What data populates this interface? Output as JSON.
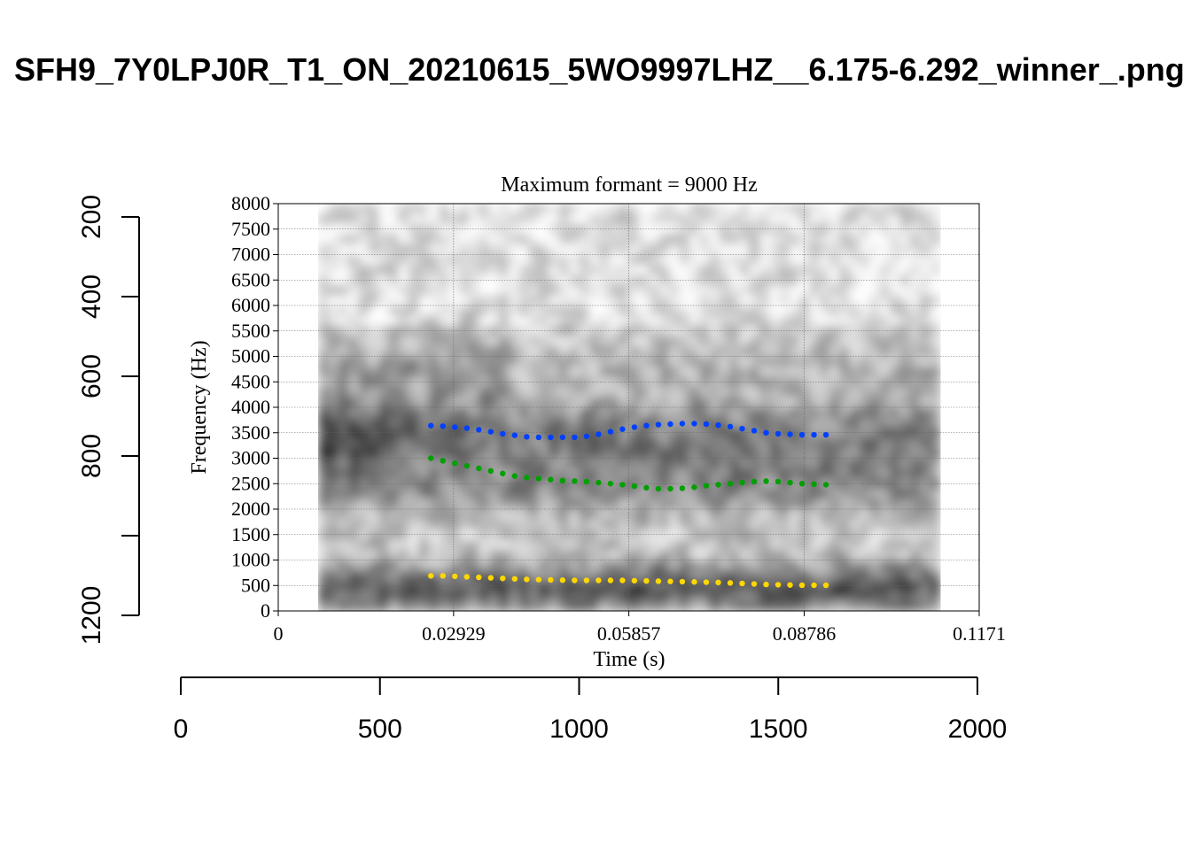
{
  "title": "SFH9_7Y0LPJ0R_T1_ON_20210615_5WO9997LHZ__6.175-6.292_winner_.png",
  "chart_data": {
    "type": "scatter",
    "subtitle": "Maximum formant = 9000 Hz",
    "xlabel": "Time (s)",
    "ylabel": "Frequency (Hz)",
    "xlim": [
      0,
      0.1171
    ],
    "ylim": [
      0,
      8000
    ],
    "x_ticks": [
      "0",
      "0.02929",
      "0.05857",
      "0.08786",
      "0.1171"
    ],
    "y_ticks": [
      "0",
      "500",
      "1000",
      "1500",
      "2000",
      "2500",
      "3000",
      "3500",
      "4000",
      "4500",
      "5000",
      "5500",
      "6000",
      "6500",
      "7000",
      "7500",
      "8000"
    ],
    "grid": true,
    "background": "spectrogram (grayscale)",
    "spectrogram_time_range": [
      0.0067,
      0.1105
    ],
    "series": [
      {
        "color": "#ffd700",
        "x": [
          0.0255,
          0.0275,
          0.0295,
          0.0315,
          0.0335,
          0.0355,
          0.0375,
          0.0395,
          0.0415,
          0.0435,
          0.0455,
          0.0475,
          0.0495,
          0.0515,
          0.0535,
          0.0555,
          0.0575,
          0.0595,
          0.0615,
          0.0635,
          0.0655,
          0.0675,
          0.0695,
          0.0715,
          0.0735,
          0.0755,
          0.0775,
          0.0795,
          0.0815,
          0.0835,
          0.0855,
          0.0875,
          0.0895,
          0.0915
        ],
        "y": [
          690,
          690,
          680,
          670,
          660,
          650,
          640,
          630,
          620,
          615,
          610,
          605,
          600,
          600,
          600,
          600,
          600,
          595,
          590,
          585,
          580,
          575,
          570,
          565,
          560,
          550,
          540,
          530,
          520,
          515,
          510,
          505,
          505,
          505
        ]
      },
      {
        "color": "#00a000",
        "x": [
          0.0255,
          0.0275,
          0.0295,
          0.0315,
          0.0335,
          0.0355,
          0.0375,
          0.0395,
          0.0415,
          0.0435,
          0.0455,
          0.0475,
          0.0495,
          0.0515,
          0.0535,
          0.0555,
          0.0575,
          0.0595,
          0.0615,
          0.0635,
          0.0655,
          0.0675,
          0.0695,
          0.0715,
          0.0735,
          0.0755,
          0.0775,
          0.0795,
          0.0815,
          0.0835,
          0.0855,
          0.0875,
          0.0895,
          0.0915
        ],
        "y": [
          3000,
          2950,
          2900,
          2850,
          2800,
          2750,
          2700,
          2650,
          2620,
          2600,
          2580,
          2560,
          2550,
          2540,
          2520,
          2500,
          2480,
          2450,
          2420,
          2400,
          2400,
          2410,
          2430,
          2460,
          2480,
          2500,
          2520,
          2540,
          2550,
          2540,
          2520,
          2500,
          2490,
          2480
        ]
      },
      {
        "color": "#0040ff",
        "x": [
          0.0255,
          0.0275,
          0.0295,
          0.0315,
          0.0335,
          0.0355,
          0.0375,
          0.0395,
          0.0415,
          0.0435,
          0.0455,
          0.0475,
          0.0495,
          0.0515,
          0.0535,
          0.0555,
          0.0575,
          0.0595,
          0.0615,
          0.0635,
          0.0655,
          0.0675,
          0.0695,
          0.0715,
          0.0735,
          0.0755,
          0.0775,
          0.0795,
          0.0815,
          0.0835,
          0.0855,
          0.0875,
          0.0895,
          0.0915
        ],
        "y": [
          3640,
          3630,
          3610,
          3590,
          3560,
          3520,
          3480,
          3450,
          3420,
          3410,
          3410,
          3410,
          3410,
          3430,
          3470,
          3520,
          3570,
          3610,
          3640,
          3660,
          3670,
          3680,
          3680,
          3670,
          3650,
          3620,
          3580,
          3540,
          3500,
          3480,
          3470,
          3460,
          3460,
          3460
        ]
      }
    ],
    "outer_x_axis": {
      "ticks": [
        "0",
        "500",
        "1000",
        "1500",
        "2000"
      ],
      "range": [
        0,
        2000
      ]
    },
    "outer_y_axis": {
      "ticks": [
        "200",
        "400",
        "600",
        "800",
        "1200"
      ],
      "range": [
        1200,
        200
      ]
    }
  }
}
